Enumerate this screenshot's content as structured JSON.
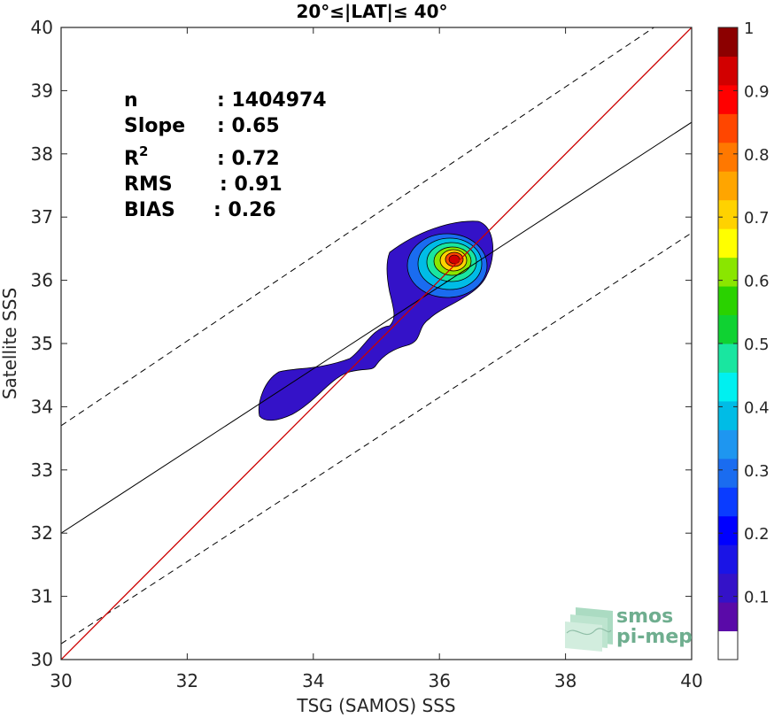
{
  "chart_data": {
    "type": "scatter",
    "subtype": "density-contour",
    "title": "20°≤|LAT|≤ 40°",
    "xlabel": "TSG (SAMOS) SSS",
    "ylabel": "Satellite SSS",
    "xlim": [
      30,
      40
    ],
    "ylim": [
      30,
      40
    ],
    "xticks": [
      30,
      32,
      34,
      36,
      38,
      40
    ],
    "yticks": [
      30,
      31,
      32,
      33,
      34,
      35,
      36,
      37,
      38,
      39,
      40
    ],
    "grid": false,
    "stats": [
      {
        "label": "n",
        "value": ": 1404974"
      },
      {
        "label": "Slope",
        "value": ": 0.65"
      },
      {
        "label": "R",
        "sup": "2",
        "value": ": 0.72"
      },
      {
        "label": "RMS",
        "value": ": 0.91"
      },
      {
        "label": "BIAS",
        "value": ": 0.26"
      }
    ],
    "lines": {
      "identity": {
        "slope": 1,
        "intercept": 0,
        "color": "#cc0000"
      },
      "regression": {
        "x": [
          30,
          40
        ],
        "y": [
          32.0,
          38.5
        ],
        "color": "#000000"
      },
      "upper_bound": {
        "x": [
          30,
          40
        ],
        "y": [
          33.7,
          40.4
        ],
        "style": "dashed"
      },
      "lower_bound": {
        "x": [
          30,
          40
        ],
        "y": [
          30.25,
          36.75
        ],
        "style": "dashed"
      }
    },
    "density_peak": {
      "x": 36.2,
      "y": 36.3
    },
    "colorbar": {
      "range": [
        0,
        1
      ],
      "ticks": [
        0.1,
        0.2,
        0.3,
        0.4,
        0.5,
        0.6,
        0.7,
        0.8,
        0.9,
        1
      ],
      "tick_labels": [
        "0.1",
        "0.2",
        "0.3",
        "0.4",
        "0.5",
        "0.6",
        "0.7",
        "0.8",
        "0.9",
        "1"
      ],
      "colors": [
        "#ffffff",
        "#5a0aa8",
        "#3412c8",
        "#1a14e6",
        "#0000ff",
        "#0a3cff",
        "#1a6cf0",
        "#1e96f0",
        "#00bce6",
        "#00f0f0",
        "#19e6a0",
        "#0fd232",
        "#2ad200",
        "#8ae600",
        "#ffff00",
        "#ffd200",
        "#ffa500",
        "#ff7800",
        "#ff4600",
        "#ff0000",
        "#d20000",
        "#8c0000"
      ]
    }
  },
  "logo": {
    "line1": "smos",
    "line2": "pi-mep"
  }
}
